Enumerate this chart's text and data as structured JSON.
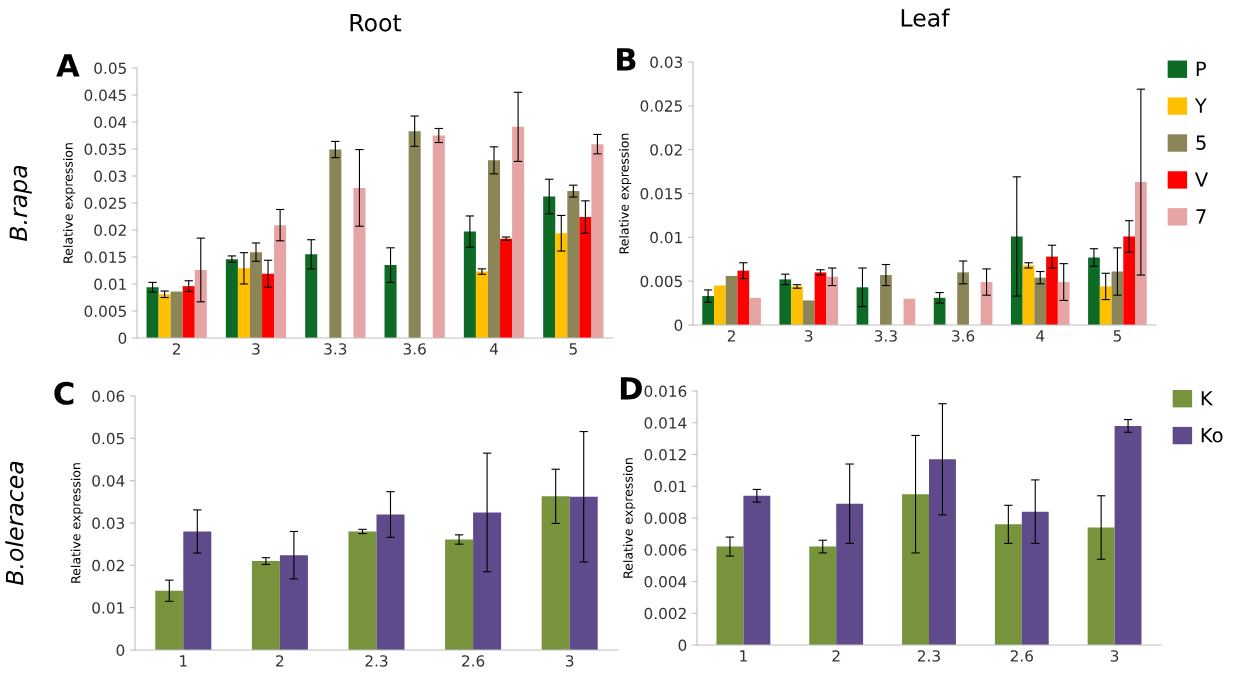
{
  "chart_data": [
    {
      "type": "bar",
      "title": "A",
      "subtitle": "Root",
      "annotations": [
        "B.rapa"
      ],
      "ylabel": "Relative expression",
      "categories": [
        "2",
        "3",
        "3.3",
        "3.6",
        "4",
        "5"
      ],
      "ylim": [
        0,
        0.05
      ],
      "yticks": [
        0,
        0.005,
        0.01,
        0.015,
        0.02,
        0.025,
        0.03,
        0.035,
        0.04,
        0.045,
        0.05
      ],
      "grid": false,
      "legend": false,
      "series": [
        {
          "color": "#0d6b26",
          "values": [
            0.0094,
            0.0146,
            0.0155,
            0.0135,
            0.0197,
            0.0262
          ],
          "errors": [
            0.0009,
            0.0006,
            0.0027,
            0.0032,
            0.0029,
            0.0032
          ]
        },
        {
          "color": "#ffc000",
          "values": [
            0.0081,
            0.0129,
            null,
            null,
            0.0123,
            0.0194
          ],
          "errors": [
            0.0006,
            0.0029,
            null,
            null,
            0.0005,
            0.0033
          ]
        },
        {
          "color": "#8c8558",
          "values": [
            0.0086,
            0.0159,
            0.0349,
            0.0383,
            0.0329,
            0.0272
          ],
          "errors": [
            null,
            0.0017,
            0.0015,
            0.0028,
            0.0025,
            0.0011
          ]
        },
        {
          "color": "#ff0000",
          "values": [
            0.0096,
            0.0119,
            null,
            null,
            0.0184,
            0.0224
          ],
          "errors": [
            0.001,
            0.0025,
            null,
            null,
            0.0003,
            0.003
          ]
        },
        {
          "color": "#e6a4a4",
          "values": [
            0.0126,
            0.0209,
            0.0278,
            0.0375,
            0.0391,
            0.0359
          ],
          "errors": [
            0.0059,
            0.0029,
            0.0071,
            0.0013,
            0.0064,
            0.0018
          ]
        }
      ]
    },
    {
      "type": "bar",
      "title": "B",
      "subtitle": "Leaf",
      "ylabel": "Relative expression",
      "categories": [
        "2",
        "3",
        "3.3",
        "3.6",
        "4",
        "5"
      ],
      "ylim": [
        0,
        0.03
      ],
      "yticks": [
        0,
        0.005,
        0.01,
        0.015,
        0.02,
        0.025,
        0.03
      ],
      "grid": false,
      "legend": "right",
      "series": [
        {
          "name": "P",
          "color": "#0d6b26",
          "values": [
            0.0033,
            0.0052,
            0.0043,
            0.0031,
            0.0101,
            0.0077
          ],
          "errors": [
            0.0007,
            0.0006,
            0.0022,
            0.0006,
            0.0068,
            0.001
          ]
        },
        {
          "name": "Y",
          "color": "#ffc000",
          "values": [
            0.0045,
            0.0044,
            null,
            null,
            0.0068,
            0.0044
          ],
          "errors": [
            null,
            0.0002,
            null,
            null,
            0.0003,
            0.0015
          ]
        },
        {
          "name": "5",
          "color": "#8c8558",
          "values": [
            0.0056,
            0.0028,
            0.0057,
            0.006,
            0.0054,
            0.0061
          ],
          "errors": [
            null,
            null,
            0.0012,
            0.0013,
            0.0007,
            0.0027
          ]
        },
        {
          "name": "V",
          "color": "#ff0000",
          "values": [
            0.0062,
            0.006,
            null,
            null,
            0.0078,
            0.0101
          ],
          "errors": [
            0.0009,
            0.0003,
            null,
            null,
            0.0013,
            0.0018
          ]
        },
        {
          "name": "7",
          "color": "#e6a4a4",
          "values": [
            0.0031,
            0.0055,
            0.003,
            0.0049,
            0.0049,
            0.0163
          ],
          "errors": [
            null,
            0.001,
            null,
            0.0015,
            0.0021,
            0.0106
          ]
        }
      ]
    },
    {
      "type": "bar",
      "title": "C",
      "annotations": [
        "B.oleracea"
      ],
      "ylabel": "Relative expression",
      "categories": [
        "1",
        "2",
        "2.3",
        "2.6",
        "3"
      ],
      "ylim": [
        0,
        0.06
      ],
      "yticks": [
        0,
        0.01,
        0.02,
        0.03,
        0.04,
        0.05,
        0.06
      ],
      "grid": false,
      "legend": false,
      "series": [
        {
          "color": "#77933c",
          "values": [
            0.014,
            0.021,
            0.028,
            0.0261,
            0.0363
          ],
          "errors": [
            0.0025,
            0.0008,
            0.0005,
            0.0011,
            0.0064
          ]
        },
        {
          "color": "#5f4b8b",
          "values": [
            0.028,
            0.0224,
            0.032,
            0.0325,
            0.0362
          ],
          "errors": [
            0.0051,
            0.0056,
            0.0054,
            0.014,
            0.0154
          ]
        }
      ]
    },
    {
      "type": "bar",
      "title": "D",
      "ylabel": "Relative expression",
      "categories": [
        "1",
        "2",
        "2.3",
        "2.6",
        "3"
      ],
      "ylim": [
        0,
        0.016
      ],
      "yticks": [
        0,
        0.002,
        0.004,
        0.006,
        0.008,
        0.01,
        0.012,
        0.014,
        0.016
      ],
      "grid": false,
      "legend": "right",
      "series": [
        {
          "name": "K",
          "color": "#77933c",
          "values": [
            0.0062,
            0.0062,
            0.0095,
            0.0076,
            0.0074
          ],
          "errors": [
            0.0006,
            0.0004,
            0.0037,
            0.0012,
            0.002
          ]
        },
        {
          "name": "Ko",
          "color": "#5f4b8b",
          "values": [
            0.0094,
            0.0089,
            0.0117,
            0.0084,
            0.0138
          ],
          "errors": [
            0.0004,
            0.0025,
            0.0035,
            0.002,
            0.0004
          ]
        }
      ]
    }
  ]
}
